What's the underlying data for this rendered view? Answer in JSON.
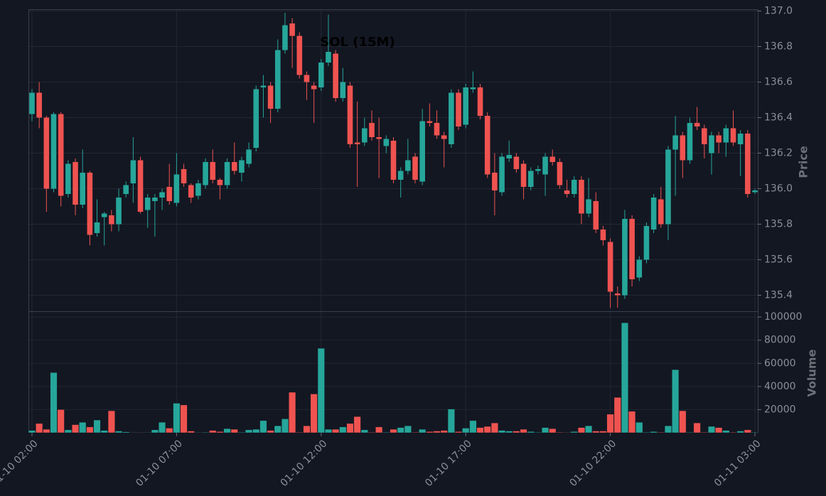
{
  "chart_data": [
    {
      "type": "candlestick",
      "title": "SOL (15M)",
      "ylabel": "Price",
      "up_color": "#26a69a",
      "down_color": "#ef5350",
      "grid": true,
      "x": [
        "01-10 02:00",
        "01-10 02:15",
        "01-10 02:30",
        "01-10 02:45",
        "01-10 03:00",
        "01-10 03:15",
        "01-10 03:30",
        "01-10 03:45",
        "01-10 04:00",
        "01-10 04:15",
        "01-10 04:30",
        "01-10 04:45",
        "01-10 05:00",
        "01-10 05:15",
        "01-10 05:30",
        "01-10 05:45",
        "01-10 06:00",
        "01-10 06:15",
        "01-10 06:30",
        "01-10 06:45",
        "01-10 07:00",
        "01-10 07:15",
        "01-10 07:30",
        "01-10 07:45",
        "01-10 08:00",
        "01-10 08:15",
        "01-10 08:30",
        "01-10 08:45",
        "01-10 09:00",
        "01-10 09:15",
        "01-10 09:30",
        "01-10 09:45",
        "01-10 10:00",
        "01-10 10:15",
        "01-10 10:30",
        "01-10 10:45",
        "01-10 11:00",
        "01-10 11:15",
        "01-10 11:30",
        "01-10 11:45",
        "01-10 12:00",
        "01-10 12:15",
        "01-10 12:30",
        "01-10 12:45",
        "01-10 13:00",
        "01-10 13:15",
        "01-10 13:30",
        "01-10 13:45",
        "01-10 14:00",
        "01-10 14:15",
        "01-10 14:30",
        "01-10 14:45",
        "01-10 15:00",
        "01-10 15:15",
        "01-10 15:30",
        "01-10 15:45",
        "01-10 16:00",
        "01-10 16:15",
        "01-10 16:30",
        "01-10 16:45",
        "01-10 17:00",
        "01-10 17:15",
        "01-10 17:30",
        "01-10 17:45",
        "01-10 18:00",
        "01-10 18:15",
        "01-10 18:30",
        "01-10 18:45",
        "01-10 19:00",
        "01-10 19:15",
        "01-10 19:30",
        "01-10 19:45",
        "01-10 20:00",
        "01-10 20:15",
        "01-10 20:30",
        "01-10 20:45",
        "01-10 21:00",
        "01-10 21:15",
        "01-10 21:30",
        "01-10 21:45",
        "01-10 22:00",
        "01-10 22:15",
        "01-10 22:30",
        "01-10 22:45",
        "01-10 23:00",
        "01-10 23:15",
        "01-10 23:30",
        "01-10 23:45",
        "01-11 00:00",
        "01-11 00:15",
        "01-11 00:30",
        "01-11 00:45",
        "01-11 01:00",
        "01-11 01:15",
        "01-11 01:30",
        "01-11 01:45",
        "01-11 02:00",
        "01-11 02:15",
        "01-11 02:30",
        "01-11 02:45",
        "01-11 03:00"
      ],
      "open": [
        136.42,
        136.54,
        136.4,
        136.0,
        136.42,
        135.97,
        136.15,
        135.91,
        136.09,
        135.75,
        135.84,
        135.85,
        135.8,
        135.97,
        136.03,
        136.16,
        135.88,
        135.93,
        135.95,
        136.01,
        135.92,
        136.11,
        136.02,
        135.96,
        136.02,
        136.15,
        136.05,
        136.02,
        136.15,
        136.09,
        136.14,
        136.23,
        136.57,
        136.58,
        136.45,
        136.78,
        136.93,
        136.86,
        136.64,
        136.58,
        136.57,
        136.71,
        136.76,
        136.51,
        136.58,
        136.26,
        136.26,
        136.37,
        136.29,
        136.24,
        136.27,
        136.05,
        136.1,
        136.18,
        136.04,
        136.38,
        136.37,
        136.3,
        136.25,
        136.54,
        136.36,
        136.56,
        136.57,
        136.41,
        136.09,
        135.98,
        136.17,
        136.18,
        136.14,
        136.01,
        136.1,
        136.08,
        136.18,
        136.15,
        135.99,
        135.97,
        136.05,
        135.86,
        135.93,
        135.77,
        135.7,
        135.41,
        135.4,
        135.83,
        135.5,
        135.6,
        135.77,
        135.94,
        135.8,
        136.22,
        136.3,
        136.16,
        136.37,
        136.34,
        136.2,
        136.3,
        136.26,
        136.34,
        136.25,
        136.31,
        135.98
      ],
      "high": [
        136.56,
        136.6,
        136.41,
        136.43,
        136.43,
        136.16,
        136.17,
        136.22,
        136.1,
        135.94,
        135.87,
        135.88,
        136.0,
        136.04,
        136.29,
        136.18,
        135.97,
        135.97,
        136.0,
        136.14,
        136.2,
        136.14,
        136.03,
        136.05,
        136.17,
        136.22,
        136.06,
        136.17,
        136.26,
        136.18,
        136.26,
        136.58,
        136.64,
        136.6,
        136.84,
        136.99,
        136.96,
        136.88,
        136.66,
        136.6,
        136.73,
        136.98,
        136.78,
        136.68,
        136.6,
        136.49,
        136.4,
        136.44,
        136.4,
        136.3,
        136.29,
        136.12,
        136.28,
        136.2,
        136.45,
        136.48,
        136.44,
        136.32,
        136.56,
        136.56,
        136.59,
        136.66,
        136.59,
        136.43,
        136.2,
        136.2,
        136.27,
        136.2,
        136.16,
        136.12,
        136.13,
        136.2,
        136.22,
        136.17,
        136.05,
        136.07,
        136.07,
        136.06,
        135.98,
        135.79,
        135.72,
        135.45,
        135.88,
        135.85,
        135.62,
        135.81,
        135.97,
        136.01,
        136.24,
        136.41,
        136.32,
        136.4,
        136.46,
        136.36,
        136.32,
        136.32,
        136.36,
        136.44,
        136.33,
        136.33,
        136.0
      ],
      "low": [
        136.38,
        136.34,
        135.87,
        135.98,
        135.9,
        135.95,
        135.85,
        135.89,
        135.68,
        135.73,
        135.68,
        135.76,
        135.76,
        135.95,
        135.92,
        135.86,
        135.78,
        135.73,
        135.88,
        135.91,
        135.9,
        136.01,
        135.92,
        135.94,
        136.0,
        136.03,
        135.94,
        136.0,
        136.08,
        136.04,
        136.12,
        136.21,
        136.4,
        136.37,
        136.43,
        136.76,
        136.68,
        136.62,
        136.5,
        136.37,
        136.55,
        136.69,
        136.49,
        136.49,
        136.23,
        136.01,
        136.24,
        136.27,
        136.06,
        136.2,
        136.03,
        135.95,
        136.08,
        136.03,
        136.02,
        136.35,
        136.28,
        136.12,
        136.23,
        136.33,
        136.34,
        136.54,
        136.39,
        136.06,
        135.85,
        135.96,
        136.15,
        136.09,
        135.94,
        135.99,
        136.08,
        135.96,
        136.13,
        136.0,
        135.95,
        135.95,
        135.8,
        135.84,
        135.75,
        135.68,
        135.33,
        135.33,
        135.38,
        135.45,
        135.48,
        135.58,
        135.75,
        135.78,
        135.71,
        135.96,
        136.06,
        136.14,
        136.33,
        136.17,
        136.08,
        136.2,
        136.18,
        136.24,
        136.07,
        135.95,
        135.97
      ],
      "close": [
        136.54,
        136.4,
        136.0,
        136.42,
        135.96,
        136.14,
        135.91,
        136.09,
        135.74,
        135.81,
        135.86,
        135.8,
        135.95,
        136.02,
        136.16,
        135.87,
        135.95,
        135.95,
        135.98,
        135.93,
        136.08,
        136.03,
        135.95,
        136.03,
        136.15,
        136.05,
        136.02,
        136.15,
        136.1,
        136.16,
        136.22,
        136.56,
        136.58,
        136.45,
        136.78,
        136.92,
        136.86,
        136.64,
        136.6,
        136.56,
        136.71,
        136.77,
        136.51,
        136.6,
        136.25,
        136.25,
        136.34,
        136.29,
        136.28,
        136.28,
        136.05,
        136.1,
        136.16,
        136.05,
        136.38,
        136.37,
        136.3,
        136.28,
        136.54,
        136.35,
        136.57,
        136.57,
        136.41,
        136.08,
        135.99,
        136.18,
        136.19,
        136.11,
        136.01,
        136.1,
        136.11,
        136.18,
        136.15,
        136.02,
        135.97,
        136.05,
        135.86,
        135.94,
        135.77,
        135.71,
        135.42,
        135.4,
        135.83,
        135.49,
        135.6,
        135.79,
        135.95,
        135.8,
        136.22,
        136.3,
        136.16,
        136.37,
        136.35,
        136.25,
        136.3,
        136.26,
        136.34,
        136.26,
        136.31,
        135.97,
        135.99
      ],
      "ylim": [
        135.31,
        137.01
      ],
      "yticks": [
        135.4,
        135.6,
        135.8,
        {
          "value": 136,
          "label": "136.0"
        },
        136.2,
        136.4,
        136.6,
        136.8,
        {
          "value": 137,
          "label": "137.0"
        }
      ],
      "xticks": [
        "01-10 02:00",
        "01-10 07:00",
        "01-10 12:00",
        "01-10 17:00",
        "01-10 22:00",
        "01-11 03:00"
      ]
    },
    {
      "type": "bar",
      "ylabel": "Volume",
      "up_color": "#26a69a",
      "down_color": "#ef5350",
      "values": [
        2000,
        8000,
        3000,
        52000,
        20000,
        2500,
        7000,
        9000,
        5000,
        11000,
        2000,
        19000,
        1500,
        800,
        300,
        300,
        300,
        2500,
        9000,
        4000,
        25500,
        24000,
        1500,
        200,
        500,
        2000,
        1000,
        3500,
        3000,
        500,
        2500,
        3000,
        10500,
        2000,
        6000,
        12000,
        35000,
        500,
        6000,
        33500,
        73000,
        3000,
        3000,
        5000,
        8000,
        14000,
        2500,
        500,
        5000,
        500,
        3000,
        4500,
        6000,
        500,
        3000,
        1000,
        1500,
        2000,
        20500,
        1000,
        4000,
        10500,
        4500,
        5500,
        8500,
        2000,
        1500,
        1500,
        3000,
        1000,
        500,
        4500,
        3500,
        500,
        300,
        1000,
        4500,
        6000,
        1500,
        1500,
        16000,
        30500,
        95000,
        18500,
        9000,
        500,
        1000,
        500,
        6000,
        54500,
        19000,
        500,
        8500,
        500,
        5500,
        4500,
        2000,
        500,
        1500,
        2500,
        500
      ],
      "ylim": [
        0,
        105000
      ],
      "yticks": [
        20000,
        40000,
        60000,
        80000,
        100000
      ]
    }
  ]
}
